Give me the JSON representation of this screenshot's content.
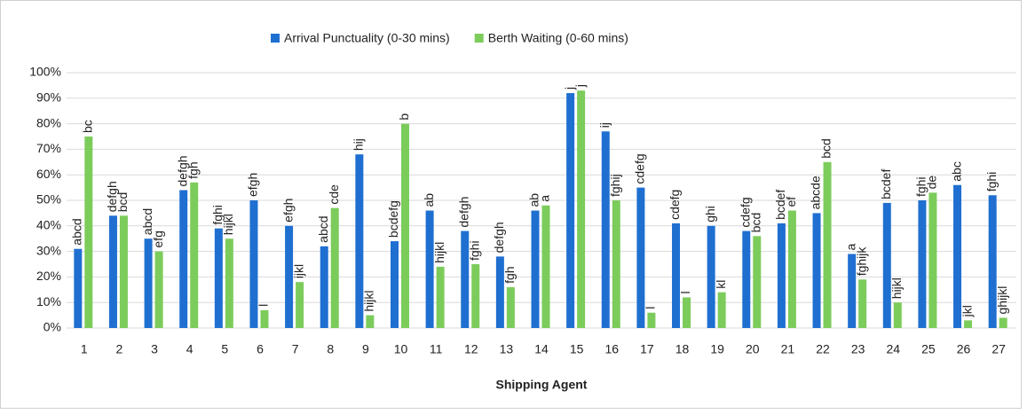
{
  "chart_data": {
    "type": "bar",
    "x_label": "Shipping Agent",
    "categories": [
      "1",
      "2",
      "3",
      "4",
      "5",
      "6",
      "7",
      "8",
      "9",
      "10",
      "11",
      "12",
      "13",
      "14",
      "15",
      "16",
      "17",
      "18",
      "19",
      "20",
      "21",
      "22",
      "23",
      "24",
      "25",
      "26",
      "27"
    ],
    "series": [
      {
        "name": "Arrival Punctuality (0-30 mins)",
        "color": "#1f6fd1",
        "values": [
          31,
          44,
          35,
          54,
          39,
          50,
          40,
          32,
          68,
          34,
          46,
          38,
          28,
          46,
          92,
          77,
          55,
          41,
          40,
          38,
          41,
          45,
          29,
          49,
          50,
          56,
          52
        ],
        "annotations": [
          "abcd",
          "defgh",
          "abcd",
          "defgh",
          "fghi",
          "efgh",
          "efgh",
          "abcd",
          "hij",
          "bcdefg",
          "ab",
          "defgh",
          "defgh",
          "ab",
          "j",
          "ij",
          "cdefg",
          "cdefg",
          "ghi",
          "cdefg",
          "bcdef",
          "abcde",
          "a",
          "bcdef",
          "fghi",
          "abc",
          "fghi"
        ]
      },
      {
        "name": "Berth Waiting (0-60 mins)",
        "color": "#7ccc5b",
        "values": [
          75,
          44,
          30,
          57,
          35,
          7,
          18,
          47,
          5,
          80,
          24,
          25,
          16,
          48,
          93,
          50,
          6,
          12,
          14,
          36,
          46,
          65,
          19,
          10,
          53,
          3,
          4
        ],
        "annotations": [
          "bc",
          "bcd",
          "efg",
          "fgh",
          "hijkl",
          "l",
          "ijkl",
          "cde",
          "hijkl",
          "b",
          "hijkl",
          "fghi",
          "fgh",
          "a",
          "j",
          "fghij",
          "l",
          "l",
          "kl",
          "bcd",
          "ef",
          "bcd",
          "fghijk",
          "hijkl",
          "de",
          "jkl",
          "ghijkl"
        ]
      }
    ],
    "ylim": [
      0,
      100
    ],
    "yticks": [
      {
        "value": 0,
        "label": "0%"
      },
      {
        "value": 10,
        "label": "10%"
      },
      {
        "value": 20,
        "label": "20%"
      },
      {
        "value": 30,
        "label": "30%"
      },
      {
        "value": 40,
        "label": "40%"
      },
      {
        "value": 50,
        "label": "50%"
      },
      {
        "value": 60,
        "label": "60%"
      },
      {
        "value": 70,
        "label": "70%"
      },
      {
        "value": 80,
        "label": "80%"
      },
      {
        "value": 90,
        "label": "90%"
      },
      {
        "value": 100,
        "label": "100%"
      }
    ],
    "grid": true,
    "legend": "top"
  }
}
